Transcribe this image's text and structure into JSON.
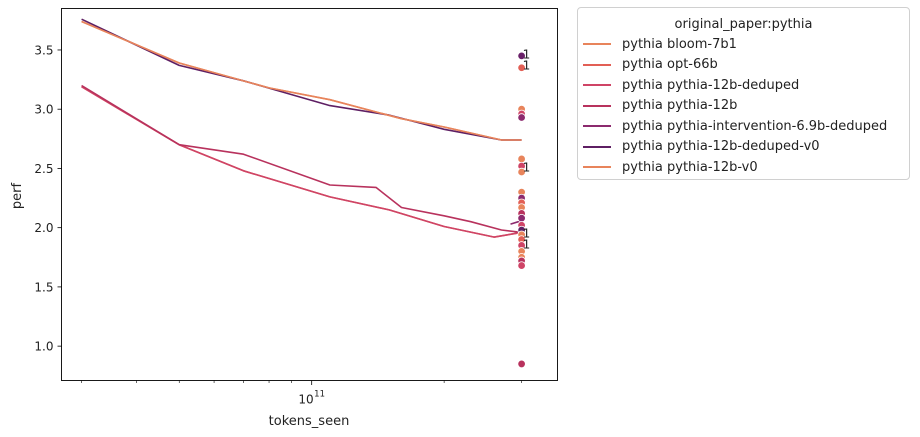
{
  "chart_data": {
    "type": "line",
    "xlabel": "tokens_seen",
    "ylabel": "perf",
    "x_scale": "log",
    "xlim": [
      27000000000.0,
      362000000000.0
    ],
    "ylim": [
      0.71,
      3.85
    ],
    "x_tick_labels": [
      {
        "value": 100000000000.0,
        "base": "10",
        "exp": "11"
      }
    ],
    "y_ticks": [
      1.0,
      1.5,
      2.0,
      2.5,
      3.0,
      3.5
    ],
    "y_tick_labels": [
      "1.0",
      "1.5",
      "2.0",
      "2.5",
      "3.0",
      "3.5"
    ],
    "legend_title": "original_paper:pythia",
    "legend_position": "outside-right",
    "series": [
      {
        "name": "pythia bloom-7b1",
        "color": "#e8845b",
        "x": [
          30000000000.0,
          50000000000.0,
          80000000000.0,
          110000000000.0,
          160000000000.0,
          200000000000.0,
          270000000000.0,
          300000000000.0
        ],
        "y": [
          3.74,
          3.39,
          3.18,
          3.08,
          2.92,
          2.85,
          2.74,
          2.74
        ]
      },
      {
        "name": "pythia opt-66b",
        "color": "#e25f55",
        "x": [
          30000000000.0,
          50000000000.0,
          70000000000.0,
          110000000000.0,
          150000000000.0,
          200000000000.0,
          260000000000.0,
          300000000000.0
        ],
        "y": [
          3.19,
          2.7,
          2.48,
          2.26,
          2.15,
          2.01,
          1.92,
          1.96
        ]
      },
      {
        "name": "pythia pythia-12b-deduped",
        "color": "#cf4466",
        "x": [
          30000000000.0,
          50000000000.0,
          70000000000.0,
          110000000000.0,
          150000000000.0,
          200000000000.0,
          260000000000.0,
          300000000000.0
        ],
        "y": [
          3.19,
          2.7,
          2.48,
          2.26,
          2.15,
          2.01,
          1.92,
          1.96
        ]
      },
      {
        "name": "pythia pythia-12b",
        "color": "#b8325d",
        "x": [
          30000000000.0,
          50000000000.0,
          70000000000.0,
          110000000000.0,
          140000000000.0,
          160000000000.0,
          200000000000.0,
          230000000000.0,
          270000000000.0,
          300000000000.0
        ],
        "y": [
          3.2,
          2.7,
          2.62,
          2.36,
          2.34,
          2.17,
          2.1,
          2.05,
          1.98,
          1.96
        ]
      },
      {
        "name": "pythia pythia-intervention-6.9b-deduped",
        "color": "#8c2a6e",
        "x": [
          283000000000.0,
          295000000000.0,
          300000000000.0
        ],
        "y": [
          2.03,
          2.05,
          2.04
        ]
      },
      {
        "name": "pythia pythia-12b-deduped-v0",
        "color": "#5e1f63",
        "x": [
          30000000000.0,
          50000000000.0,
          70000000000.0,
          110000000000.0,
          150000000000.0,
          200000000000.0,
          270000000000.0,
          300000000000.0
        ],
        "y": [
          3.76,
          3.37,
          3.24,
          3.03,
          2.95,
          2.83,
          2.74,
          2.74
        ]
      },
      {
        "name": "pythia pythia-12b-v0",
        "color": "#e8845b",
        "x": [
          30000000000.0,
          50000000000.0,
          80000000000.0,
          110000000000.0,
          160000000000.0,
          200000000000.0,
          270000000000.0,
          300000000000.0
        ],
        "y": [
          3.74,
          3.39,
          3.18,
          3.08,
          2.92,
          2.85,
          2.74,
          2.74
        ]
      }
    ],
    "points": {
      "x": 300000000000.0,
      "values": [
        {
          "y": 3.45,
          "color": "#6a2169"
        },
        {
          "y": 3.35,
          "color": "#e25f55"
        },
        {
          "y": 3.0,
          "color": "#e8845b"
        },
        {
          "y": 2.96,
          "color": "#cf4466"
        },
        {
          "y": 2.93,
          "color": "#8c2a6e"
        },
        {
          "y": 2.58,
          "color": "#e8845b"
        },
        {
          "y": 2.52,
          "color": "#cf4466"
        },
        {
          "y": 2.47,
          "color": "#e8845b"
        },
        {
          "y": 2.3,
          "color": "#e8845b"
        },
        {
          "y": 2.25,
          "color": "#8c2a6e"
        },
        {
          "y": 2.21,
          "color": "#e25f55"
        },
        {
          "y": 2.17,
          "color": "#e8845b"
        },
        {
          "y": 2.12,
          "color": "#b8325d"
        },
        {
          "y": 2.08,
          "color": "#8c2a6e"
        },
        {
          "y": 2.02,
          "color": "#cf4466"
        },
        {
          "y": 1.98,
          "color": "#5e1f63"
        },
        {
          "y": 1.94,
          "color": "#e8845b"
        },
        {
          "y": 1.9,
          "color": "#e25f55"
        },
        {
          "y": 1.85,
          "color": "#cf4466"
        },
        {
          "y": 1.8,
          "color": "#e8845b"
        },
        {
          "y": 1.75,
          "color": "#e8845b"
        },
        {
          "y": 1.72,
          "color": "#b8325d"
        },
        {
          "y": 1.68,
          "color": "#cf4466"
        },
        {
          "y": 0.85,
          "color": "#b8325d"
        }
      ]
    },
    "annotations": [
      {
        "text": "1",
        "x": 300000000000.0,
        "y": 3.46
      },
      {
        "text": "1",
        "x": 300000000000.0,
        "y": 3.37
      },
      {
        "text": "1",
        "x": 300000000000.0,
        "y": 2.51
      },
      {
        "text": "1",
        "x": 300000000000.0,
        "y": 1.95
      },
      {
        "text": "1",
        "x": 300000000000.0,
        "y": 1.86
      }
    ]
  }
}
